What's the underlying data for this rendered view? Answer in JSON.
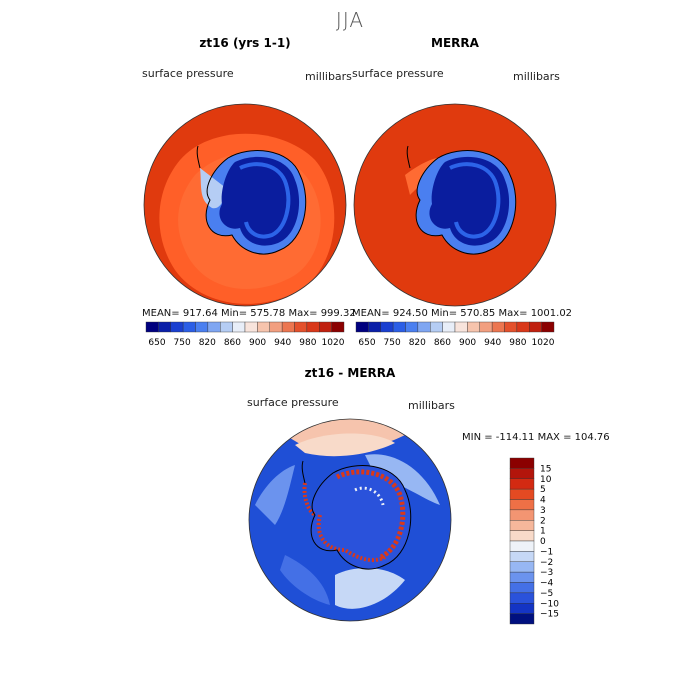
{
  "figure": {
    "title": "JJA"
  },
  "panel_left": {
    "title": "zt16 (yrs 1-1)",
    "var_label": "surface pressure",
    "units": "millibars",
    "stats": "MEAN= 917.64   Min= 575.78   Max= 999.32"
  },
  "panel_right": {
    "title": "MERRA",
    "var_label": "surface pressure",
    "units": "millibars",
    "stats": "MEAN= 924.50   Min= 570.85   Max= 1001.02"
  },
  "panel_diff": {
    "title": "zt16 - MERRA",
    "var_label": "surface pressure",
    "units": "millibars",
    "stats": "MIN = -114.11  MAX = 104.76"
  },
  "colorbar_abs": {
    "tick_labels": [
      "650",
      "750",
      "820",
      "860",
      "900",
      "940",
      "980",
      "1020"
    ],
    "colors": [
      "#00007f",
      "#0a1fa8",
      "#1a3fd0",
      "#2b5ee6",
      "#4a7ff0",
      "#7fa6f2",
      "#b5cdf4",
      "#e8eef8",
      "#f8e4dc",
      "#f6c4ad",
      "#f29f80",
      "#ec7650",
      "#e4512c",
      "#d9381a",
      "#c0200f",
      "#8b0000"
    ]
  },
  "colorbar_diff": {
    "tick_labels": [
      "15",
      "10",
      "5",
      "4",
      "3",
      "2",
      "1",
      "0",
      "−1",
      "−2",
      "−3",
      "−4",
      "−5",
      "−10",
      "−15"
    ],
    "colors": [
      "#8b0000",
      "#b3150b",
      "#d32a12",
      "#e44a22",
      "#ee7046",
      "#f39572",
      "#f6b79b",
      "#f8dac9",
      "#eef2f8",
      "#c6d8f6",
      "#97b7f3",
      "#6b93ee",
      "#4470e6",
      "#2a52db",
      "#1434c4",
      "#00107f"
    ]
  },
  "colors": {
    "ocean_high": "#e03a0e",
    "ocean_mid": "#ff5f28",
    "land_low": "#0a1d9e",
    "land_mid": "#2c64e8",
    "diff_neg": "#1f4fd6",
    "diff_pos": "#d9381a"
  }
}
